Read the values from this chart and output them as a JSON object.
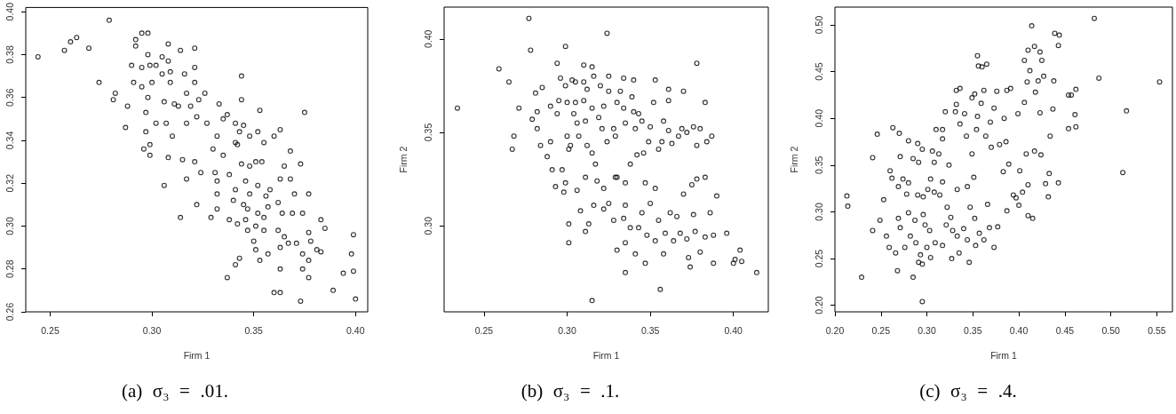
{
  "chart_data": [
    {
      "type": "scatter",
      "xlabel": "Firm 1",
      "color": "#000000",
      "marker": "circle",
      "xlim": [
        0.238,
        0.406
      ],
      "xticks": [
        0.25,
        {
          "value": 0.3,
          "label": "0.30"
        },
        0.35,
        {
          "value": 0.4,
          "label": "0.40"
        }
      ],
      "ylim": [
        0.26,
        0.402
      ],
      "yticks": [
        0.26,
        0.28,
        {
          "value": 0.3,
          "label": "0.30"
        },
        0.32,
        0.34,
        0.36,
        0.38,
        {
          "value": 0.4,
          "label": "0.40"
        }
      ],
      "annotations": [
        "(a) σ₃ = .01."
      ],
      "x": [
        0.244,
        0.257,
        0.26,
        0.263,
        0.269,
        0.279,
        0.274,
        0.282,
        0.281,
        0.288,
        0.287,
        0.292,
        0.292,
        0.295,
        0.298,
        0.298,
        0.29,
        0.295,
        0.299,
        0.302,
        0.291,
        0.295,
        0.3,
        0.298,
        0.297,
        0.302,
        0.297,
        0.296,
        0.299,
        0.299,
        0.305,
        0.308,
        0.308,
        0.309,
        0.305,
        0.309,
        0.306,
        0.311,
        0.313,
        0.307,
        0.31,
        0.308,
        0.306,
        0.314,
        0.314,
        0.316,
        0.317,
        0.319,
        0.317,
        0.315,
        0.317,
        0.321,
        0.321,
        0.321,
        0.323,
        0.322,
        0.321,
        0.324,
        0.322,
        0.329,
        0.326,
        0.327,
        0.33,
        0.331,
        0.332,
        0.333,
        0.332,
        0.335,
        0.335,
        0.332,
        0.332,
        0.337,
        0.338,
        0.337,
        0.341,
        0.341,
        0.338,
        0.341,
        0.34,
        0.344,
        0.344,
        0.345,
        0.343,
        0.342,
        0.344,
        0.346,
        0.345,
        0.342,
        0.343,
        0.341,
        0.348,
        0.348,
        0.348,
        0.347,
        0.346,
        0.347,
        0.352,
        0.351,
        0.352,
        0.352,
        0.351,
        0.35,
        0.351,
        0.353,
        0.353,
        0.355,
        0.354,
        0.356,
        0.355,
        0.355,
        0.357,
        0.357,
        0.358,
        0.36,
        0.362,
        0.362,
        0.363,
        0.363,
        0.36,
        0.363,
        0.363,
        0.363,
        0.365,
        0.364,
        0.365,
        0.367,
        0.368,
        0.368,
        0.37,
        0.369,
        0.371,
        0.373,
        0.375,
        0.374,
        0.374,
        0.374,
        0.373,
        0.377,
        0.377,
        0.377,
        0.377,
        0.378,
        0.383,
        0.383,
        0.385,
        0.381,
        0.389,
        0.394,
        0.399,
        0.398,
        0.399,
        0.4
      ],
      "values": [
        0.379,
        0.382,
        0.386,
        0.388,
        0.383,
        0.396,
        0.367,
        0.362,
        0.359,
        0.356,
        0.346,
        0.387,
        0.384,
        0.39,
        0.39,
        0.38,
        0.375,
        0.374,
        0.375,
        0.375,
        0.367,
        0.365,
        0.367,
        0.36,
        0.353,
        0.348,
        0.344,
        0.336,
        0.333,
        0.338,
        0.379,
        0.385,
        0.377,
        0.372,
        0.371,
        0.367,
        0.358,
        0.357,
        0.356,
        0.348,
        0.342,
        0.332,
        0.319,
        0.382,
        0.304,
        0.371,
        0.362,
        0.356,
        0.348,
        0.331,
        0.322,
        0.383,
        0.374,
        0.367,
        0.359,
        0.351,
        0.33,
        0.325,
        0.31,
        0.304,
        0.362,
        0.348,
        0.336,
        0.325,
        0.321,
        0.357,
        0.342,
        0.35,
        0.333,
        0.315,
        0.308,
        0.352,
        0.303,
        0.276,
        0.348,
        0.339,
        0.324,
        0.317,
        0.312,
        0.37,
        0.359,
        0.347,
        0.344,
        0.338,
        0.329,
        0.321,
        0.31,
        0.301,
        0.285,
        0.282,
        0.342,
        0.328,
        0.315,
        0.308,
        0.303,
        0.298,
        0.344,
        0.33,
        0.319,
        0.306,
        0.3,
        0.293,
        0.289,
        0.284,
        0.354,
        0.339,
        0.33,
        0.314,
        0.304,
        0.298,
        0.287,
        0.309,
        0.317,
        0.342,
        0.311,
        0.298,
        0.345,
        0.322,
        0.269,
        0.269,
        0.28,
        0.29,
        0.328,
        0.306,
        0.295,
        0.292,
        0.322,
        0.335,
        0.315,
        0.306,
        0.292,
        0.329,
        0.353,
        0.306,
        0.287,
        0.28,
        0.265,
        0.315,
        0.297,
        0.284,
        0.276,
        0.293,
        0.303,
        0.288,
        0.299,
        0.289,
        0.27,
        0.278,
        0.296,
        0.287,
        0.279,
        0.266
      ]
    },
    {
      "type": "scatter",
      "xlabel": "Firm 1",
      "ylabel": "Firm 2",
      "color": "#000000",
      "marker": "circle",
      "xlim": [
        0.226,
        0.421
      ],
      "xticks": [
        0.25,
        {
          "value": 0.3,
          "label": "0.30"
        },
        0.35,
        {
          "value": 0.4,
          "label": "0.40"
        }
      ],
      "ylim": [
        0.254,
        0.417
      ],
      "yticks": [
        {
          "value": 0.3,
          "label": "0.30"
        },
        0.35,
        {
          "value": 0.4,
          "label": "0.40"
        }
      ],
      "annotations": [
        "(b) σ₃ = .1."
      ],
      "x": [
        0.234,
        0.277,
        0.278,
        0.259,
        0.265,
        0.271,
        0.268,
        0.267,
        0.281,
        0.285,
        0.282,
        0.279,
        0.282,
        0.284,
        0.29,
        0.29,
        0.288,
        0.291,
        0.293,
        0.294,
        0.296,
        0.299,
        0.299,
        0.295,
        0.3,
        0.294,
        0.3,
        0.301,
        0.302,
        0.297,
        0.299,
        0.298,
        0.301,
        0.301,
        0.303,
        0.305,
        0.305,
        0.304,
        0.306,
        0.307,
        0.306,
        0.308,
        0.31,
        0.31,
        0.312,
        0.31,
        0.311,
        0.312,
        0.311,
        0.311,
        0.313,
        0.315,
        0.315,
        0.316,
        0.315,
        0.315,
        0.317,
        0.316,
        0.318,
        0.32,
        0.322,
        0.319,
        0.321,
        0.322,
        0.322,
        0.325,
        0.324,
        0.325,
        0.325,
        0.324,
        0.328,
        0.329,
        0.328,
        0.33,
        0.329,
        0.33,
        0.33,
        0.332,
        0.334,
        0.334,
        0.335,
        0.335,
        0.335,
        0.334,
        0.335,
        0.335,
        0.339,
        0.338,
        0.338,
        0.34,
        0.34,
        0.341,
        0.342,
        0.341,
        0.343,
        0.343,
        0.345,
        0.346,
        0.345,
        0.347,
        0.348,
        0.347,
        0.349,
        0.35,
        0.35,
        0.352,
        0.353,
        0.353,
        0.353,
        0.355,
        0.355,
        0.356,
        0.357,
        0.358,
        0.358,
        0.359,
        0.361,
        0.361,
        0.361,
        0.362,
        0.363,
        0.364,
        0.366,
        0.367,
        0.368,
        0.369,
        0.37,
        0.37,
        0.372,
        0.372,
        0.373,
        0.374,
        0.375,
        0.376,
        0.376,
        0.377,
        0.378,
        0.378,
        0.378,
        0.38,
        0.38,
        0.383,
        0.383,
        0.383,
        0.384,
        0.386,
        0.387,
        0.388,
        0.388,
        0.39,
        0.396,
        0.4,
        0.401,
        0.404,
        0.405,
        0.414
      ],
      "values": [
        0.363,
        0.411,
        0.394,
        0.384,
        0.377,
        0.363,
        0.348,
        0.341,
        0.371,
        0.374,
        0.361,
        0.357,
        0.352,
        0.343,
        0.364,
        0.345,
        0.337,
        0.33,
        0.321,
        0.387,
        0.379,
        0.396,
        0.375,
        0.367,
        0.366,
        0.36,
        0.348,
        0.341,
        0.343,
        0.33,
        0.323,
        0.318,
        0.301,
        0.291,
        0.378,
        0.377,
        0.366,
        0.36,
        0.355,
        0.348,
        0.319,
        0.308,
        0.386,
        0.377,
        0.373,
        0.367,
        0.356,
        0.343,
        0.326,
        0.297,
        0.301,
        0.385,
        0.26,
        0.38,
        0.363,
        0.339,
        0.333,
        0.311,
        0.324,
        0.375,
        0.364,
        0.358,
        0.352,
        0.32,
        0.309,
        0.312,
        0.403,
        0.38,
        0.372,
        0.345,
        0.352,
        0.326,
        0.303,
        0.366,
        0.348,
        0.326,
        0.287,
        0.372,
        0.379,
        0.363,
        0.355,
        0.323,
        0.311,
        0.304,
        0.291,
        0.275,
        0.369,
        0.333,
        0.299,
        0.378,
        0.361,
        0.352,
        0.338,
        0.285,
        0.36,
        0.299,
        0.356,
        0.339,
        0.307,
        0.323,
        0.295,
        0.28,
        0.345,
        0.312,
        0.353,
        0.366,
        0.378,
        0.32,
        0.292,
        0.341,
        0.303,
        0.266,
        0.345,
        0.285,
        0.356,
        0.296,
        0.373,
        0.367,
        0.351,
        0.307,
        0.344,
        0.292,
        0.305,
        0.348,
        0.296,
        0.352,
        0.372,
        0.317,
        0.35,
        0.293,
        0.283,
        0.278,
        0.322,
        0.353,
        0.306,
        0.297,
        0.325,
        0.343,
        0.387,
        0.352,
        0.286,
        0.366,
        0.326,
        0.294,
        0.345,
        0.307,
        0.348,
        0.295,
        0.28,
        0.316,
        0.296,
        0.28,
        0.282,
        0.287,
        0.281,
        0.275
      ]
    },
    {
      "type": "scatter",
      "xlabel": "Firm 1",
      "ylabel": "Firm 2",
      "color": "#000000",
      "marker": "circle",
      "xlim": [
        0.2,
        0.567
      ],
      "xticks": [
        {
          "value": 0.2,
          "label": "0.20"
        },
        0.25,
        {
          "value": 0.3,
          "label": "0.30"
        },
        0.35,
        {
          "value": 0.4,
          "label": "0.40"
        },
        0.45,
        {
          "value": 0.5,
          "label": "0.50"
        },
        0.55
      ],
      "ylim": [
        0.193,
        0.519
      ],
      "yticks": [
        {
          "value": 0.2,
          "label": "0.20"
        },
        0.25,
        {
          "value": 0.3,
          "label": "0.30"
        },
        0.35,
        {
          "value": 0.4,
          "label": "0.40"
        },
        0.45,
        {
          "value": 0.5,
          "label": "0.50"
        }
      ],
      "annotations": [
        "(c) σ₃ = .4."
      ],
      "x": [
        0.213,
        0.214,
        0.229,
        0.241,
        0.241,
        0.246,
        0.249,
        0.253,
        0.256,
        0.259,
        0.26,
        0.262,
        0.263,
        0.266,
        0.269,
        0.268,
        0.269,
        0.271,
        0.27,
        0.271,
        0.274,
        0.276,
        0.278,
        0.28,
        0.28,
        0.282,
        0.285,
        0.285,
        0.287,
        0.288,
        0.29,
        0.291,
        0.29,
        0.291,
        0.293,
        0.295,
        0.295,
        0.295,
        0.296,
        0.298,
        0.3,
        0.303,
        0.304,
        0.304,
        0.306,
        0.308,
        0.309,
        0.31,
        0.313,
        0.317,
        0.317,
        0.317,
        0.32,
        0.321,
        0.324,
        0.326,
        0.327,
        0.328,
        0.331,
        0.332,
        0.332,
        0.333,
        0.335,
        0.336,
        0.336,
        0.341,
        0.34,
        0.343,
        0.344,
        0.346,
        0.347,
        0.349,
        0.349,
        0.352,
        0.352,
        0.353,
        0.354,
        0.355,
        0.355,
        0.356,
        0.357,
        0.359,
        0.36,
        0.362,
        0.362,
        0.364,
        0.365,
        0.366,
        0.368,
        0.369,
        0.37,
        0.373,
        0.373,
        0.376,
        0.377,
        0.379,
        0.383,
        0.384,
        0.386,
        0.387,
        0.387,
        0.389,
        0.391,
        0.394,
        0.397,
        0.399,
        0.4,
        0.401,
        0.404,
        0.406,
        0.406,
        0.408,
        0.409,
        0.41,
        0.41,
        0.41,
        0.412,
        0.414,
        0.415,
        0.417,
        0.417,
        0.418,
        0.421,
        0.423,
        0.423,
        0.424,
        0.425,
        0.427,
        0.429,
        0.432,
        0.433,
        0.434,
        0.437,
        0.438,
        0.439,
        0.443,
        0.443,
        0.444,
        0.454,
        0.454,
        0.457,
        0.461,
        0.462,
        0.462,
        0.482,
        0.487,
        0.513,
        0.517,
        0.553,
        0.301,
        0.314,
        0.322,
        0.317,
        0.333,
        0.308,
        0.296,
        0.28,
        0.344,
        0.351
      ],
      "values": [
        0.317,
        0.306,
        0.23,
        0.28,
        0.358,
        0.383,
        0.291,
        0.313,
        0.274,
        0.262,
        0.344,
        0.336,
        0.39,
        0.256,
        0.327,
        0.237,
        0.293,
        0.283,
        0.384,
        0.359,
        0.335,
        0.262,
        0.319,
        0.376,
        0.299,
        0.274,
        0.23,
        0.357,
        0.291,
        0.267,
        0.373,
        0.353,
        0.318,
        0.246,
        0.254,
        0.204,
        0.244,
        0.367,
        0.297,
        0.286,
        0.262,
        0.28,
        0.251,
        0.335,
        0.365,
        0.353,
        0.267,
        0.388,
        0.362,
        0.388,
        0.378,
        0.264,
        0.407,
        0.286,
        0.35,
        0.294,
        0.25,
        0.28,
        0.407,
        0.43,
        0.415,
        0.274,
        0.256,
        0.432,
        0.394,
        0.405,
        0.282,
        0.381,
        0.27,
        0.246,
        0.305,
        0.422,
        0.362,
        0.426,
        0.293,
        0.264,
        0.388,
        0.467,
        0.402,
        0.456,
        0.277,
        0.416,
        0.455,
        0.43,
        0.27,
        0.381,
        0.458,
        0.308,
        0.283,
        0.396,
        0.369,
        0.411,
        0.262,
        0.429,
        0.284,
        0.372,
        0.343,
        0.4,
        0.375,
        0.43,
        0.301,
        0.351,
        0.432,
        0.318,
        0.315,
        0.405,
        0.307,
        0.344,
        0.321,
        0.462,
        0.417,
        0.362,
        0.439,
        0.473,
        0.329,
        0.296,
        0.451,
        0.499,
        0.293,
        0.365,
        0.477,
        0.428,
        0.44,
        0.471,
        0.406,
        0.361,
        0.462,
        0.445,
        0.33,
        0.316,
        0.341,
        0.381,
        0.41,
        0.44,
        0.491,
        0.331,
        0.478,
        0.489,
        0.389,
        0.425,
        0.425,
        0.404,
        0.431,
        0.391,
        0.507,
        0.443,
        0.342,
        0.408,
        0.439,
        0.324,
        0.318,
        0.305,
        0.332,
        0.324,
        0.321,
        0.316,
        0.331,
        0.327,
        0.337
      ]
    }
  ]
}
